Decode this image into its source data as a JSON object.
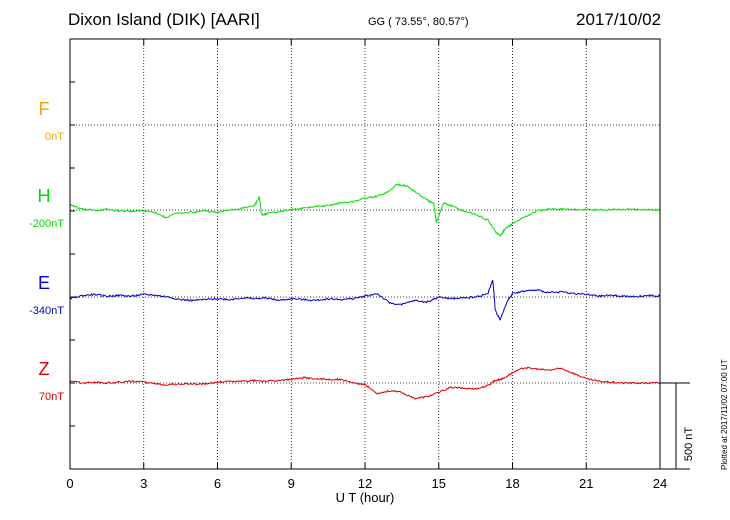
{
  "header": {
    "station": "Dixon Island (DIK)  [AARI]",
    "coords": "GG ( 73.55°,  80.57°)",
    "date": "2017/10/02"
  },
  "plotted_note": "Plotted at 2017/11/02 07:00 UT",
  "scale_bar_label": "500 nT",
  "colors": {
    "F": "#f5a500",
    "H": "#00e000",
    "E": "#0000cc",
    "Z": "#dd0000",
    "axis": "#000000"
  },
  "chart_data": {
    "type": "line",
    "xlabel": "U T (hour)",
    "xlim": [
      0,
      24
    ],
    "x_ticks": [
      "0",
      "3",
      "6",
      "9",
      "12",
      "15",
      "18",
      "21",
      "24"
    ],
    "scale_bar_nT": 500,
    "components": [
      {
        "name": "F",
        "baseline_label": "0nT",
        "baseline_nT": 0,
        "values": []
      },
      {
        "name": "H",
        "baseline_label": "-200nT",
        "baseline_nT": -200,
        "x": [
          0,
          0.5,
          1,
          1.5,
          2,
          2.5,
          3,
          3.5,
          3.9,
          4.3,
          5,
          5.5,
          6,
          6.5,
          7,
          7.5,
          7.7,
          7.8,
          8,
          8.5,
          9,
          9.5,
          10,
          10.5,
          11,
          11.5,
          12,
          12.5,
          13,
          13.3,
          13.7,
          14,
          14.5,
          14.8,
          14.9,
          15.2,
          15.5,
          16,
          16.5,
          17,
          17.3,
          17.5,
          17.7,
          18,
          18.5,
          19,
          19.5,
          20,
          20.5,
          21,
          21.5,
          22,
          22.5,
          23,
          23.5,
          24
        ],
        "values": [
          30,
          5,
          -2,
          3,
          -5,
          -8,
          -5,
          -15,
          -45,
          -20,
          -12,
          -5,
          -15,
          2,
          10,
          25,
          75,
          -30,
          -20,
          -8,
          2,
          10,
          20,
          25,
          42,
          48,
          68,
          80,
          110,
          150,
          140,
          110,
          60,
          35,
          -70,
          40,
          25,
          -5,
          -25,
          -60,
          -125,
          -150,
          -110,
          -80,
          -40,
          -5,
          5,
          5,
          3,
          2,
          0,
          3,
          3,
          5,
          2,
          0
        ]
      },
      {
        "name": "E",
        "baseline_label": "-340nT",
        "baseline_nT": -340,
        "x": [
          0,
          0.5,
          1,
          1.5,
          2,
          2.5,
          3,
          3.5,
          4,
          4.5,
          5,
          5.5,
          6,
          6.5,
          7,
          7.5,
          8,
          8.5,
          9,
          9.5,
          10,
          10.5,
          11,
          11.5,
          12,
          12.5,
          13,
          13.5,
          14,
          14.5,
          15,
          15.5,
          16,
          16.5,
          17,
          17.2,
          17.3,
          17.5,
          17.8,
          18,
          18.5,
          19,
          19.5,
          20,
          20.5,
          21,
          21.5,
          22,
          22.5,
          23,
          23.5,
          24
        ],
        "values": [
          -10,
          8,
          15,
          5,
          10,
          5,
          15,
          10,
          0,
          -15,
          -20,
          -15,
          -10,
          -15,
          -5,
          -10,
          -5,
          -20,
          -10,
          -15,
          -20,
          -10,
          -15,
          -10,
          5,
          20,
          -35,
          -45,
          -20,
          -30,
          0,
          -10,
          -5,
          0,
          20,
          100,
          -80,
          -130,
          -20,
          20,
          35,
          40,
          25,
          30,
          20,
          15,
          5,
          10,
          5,
          0,
          10,
          5
        ]
      },
      {
        "name": "Z",
        "baseline_label": "70nT",
        "baseline_nT": 70,
        "x": [
          0,
          0.5,
          1,
          1.5,
          2,
          2.5,
          3,
          3.5,
          4,
          4.5,
          5,
          5.5,
          6,
          6.5,
          7,
          7.5,
          8,
          8.5,
          9,
          9.5,
          10,
          10.5,
          11,
          11.5,
          12,
          12.5,
          13,
          13.5,
          14,
          14.5,
          15,
          15.5,
          16,
          16.5,
          17,
          17.3,
          17.6,
          18,
          18.5,
          19,
          19.5,
          20,
          20.5,
          21,
          21.5,
          22,
          22.5,
          23,
          23.5,
          24
        ],
        "values": [
          10,
          0,
          5,
          0,
          5,
          10,
          5,
          -5,
          -10,
          -5,
          -5,
          -5,
          5,
          10,
          10,
          15,
          10,
          15,
          20,
          30,
          25,
          20,
          20,
          0,
          -10,
          -60,
          -45,
          -55,
          -90,
          -80,
          -55,
          -25,
          -30,
          -35,
          -15,
          15,
          25,
          60,
          90,
          80,
          75,
          85,
          55,
          25,
          10,
          5,
          0,
          0,
          0,
          0
        ]
      }
    ]
  }
}
